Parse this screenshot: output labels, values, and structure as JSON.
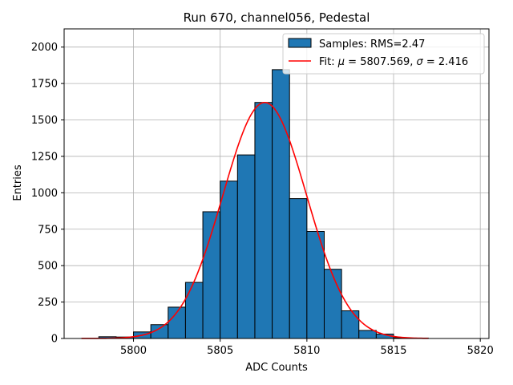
{
  "chart_data": {
    "type": "bar",
    "title": "Run 670, channel056, Pedestal",
    "xlabel": "ADC Counts",
    "ylabel": "Entries",
    "xlim": [
      5796.0,
      5820.5
    ],
    "ylim": [
      0,
      2125
    ],
    "xticks": [
      5800,
      5805,
      5810,
      5815,
      5820
    ],
    "yticks": [
      0,
      250,
      500,
      750,
      1000,
      1250,
      1500,
      1750,
      2000
    ],
    "grid": true,
    "legend_position": "top-right",
    "bin_width": 1,
    "bins": [
      {
        "left": 5798,
        "value": 12
      },
      {
        "left": 5799,
        "value": 10
      },
      {
        "left": 5800,
        "value": 45
      },
      {
        "left": 5801,
        "value": 95
      },
      {
        "left": 5802,
        "value": 215
      },
      {
        "left": 5803,
        "value": 385
      },
      {
        "left": 5804,
        "value": 870
      },
      {
        "left": 5805,
        "value": 1080
      },
      {
        "left": 5806,
        "value": 1260
      },
      {
        "left": 5807,
        "value": 1620
      },
      {
        "left": 5808,
        "value": 1845
      },
      {
        "left": 5809,
        "value": 960
      },
      {
        "left": 5810,
        "value": 735
      },
      {
        "left": 5811,
        "value": 475
      },
      {
        "left": 5812,
        "value": 190
      },
      {
        "left": 5813,
        "value": 55
      },
      {
        "left": 5814,
        "value": 30
      },
      {
        "left": 5815,
        "value": 5
      },
      {
        "left": 5816,
        "value": 3
      }
    ],
    "histogram_series": {
      "name": "Samples: RMS=2.47",
      "color": "#1f77b4",
      "edge_color": "#000000"
    },
    "fit_series": {
      "name_prefix": "Fit: ",
      "name_mu_symbol": "μ",
      "name_mu_text": " = 5807.569, ",
      "name_sigma_symbol": "σ",
      "name_sigma_text": " = 2.416",
      "mu": 5807.569,
      "sigma": 2.416,
      "amplitude": 1620,
      "x_range": [
        5797,
        5817
      ],
      "color": "#ff0000"
    }
  }
}
